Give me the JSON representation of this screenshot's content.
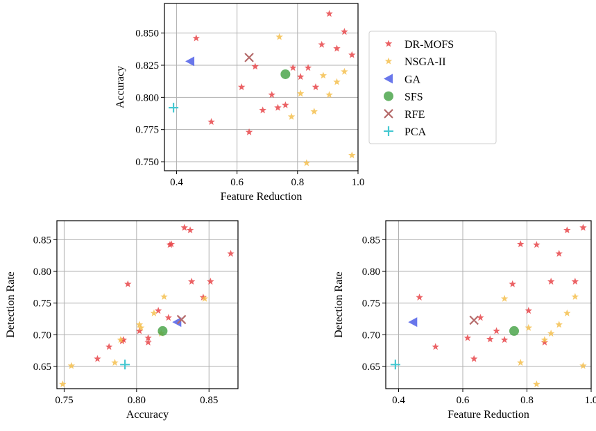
{
  "styles": {
    "DR-MOFS": {
      "marker": "star",
      "color": "#e8474a"
    },
    "NSGA-II": {
      "marker": "star",
      "color": "#f5bf4f"
    },
    "GA": {
      "marker": "triangle-left",
      "color": "#4f5fe8"
    },
    "SFS": {
      "marker": "circle",
      "color": "#4ca64c"
    },
    "RFE": {
      "marker": "x",
      "color": "#b56a6a"
    },
    "PCA": {
      "marker": "plus",
      "color": "#45c8d1"
    }
  },
  "legend": {
    "entries": [
      "DR-MOFS",
      "NSGA-II",
      "GA",
      "SFS",
      "RFE",
      "PCA"
    ]
  },
  "chart_data": [
    {
      "type": "scatter",
      "xlabel": "Feature Reduction",
      "ylabel": "Accuracy",
      "xlim": [
        0.36,
        1.0
      ],
      "ylim": [
        0.743,
        0.873
      ],
      "xticks": [
        "0.4",
        "0.6",
        "0.8",
        "1.0"
      ],
      "xtick_values": [
        0.4,
        0.6,
        0.8,
        1.0
      ],
      "yticks": [
        "0.750",
        "0.775",
        "0.800",
        "0.825",
        "0.850"
      ],
      "ytick_values": [
        0.75,
        0.775,
        0.8,
        0.825,
        0.85
      ],
      "grid": true,
      "legend_position": "right",
      "series": [
        {
          "name": "DR-MOFS",
          "x": [
            0.905,
            0.955,
            0.465,
            0.88,
            0.93,
            0.98,
            0.66,
            0.785,
            0.835,
            0.81,
            0.615,
            0.86,
            0.715,
            0.685,
            0.76,
            0.735,
            0.515,
            0.64
          ],
          "y": [
            0.865,
            0.851,
            0.846,
            0.841,
            0.838,
            0.833,
            0.824,
            0.823,
            0.823,
            0.816,
            0.808,
            0.808,
            0.802,
            0.79,
            0.794,
            0.792,
            0.781,
            0.773
          ]
        },
        {
          "name": "NSGA-II",
          "x": [
            0.74,
            0.955,
            0.885,
            0.93,
            0.81,
            0.905,
            0.855,
            0.78,
            0.98,
            0.83
          ],
          "y": [
            0.847,
            0.82,
            0.817,
            0.812,
            0.803,
            0.802,
            0.789,
            0.785,
            0.755,
            0.749
          ]
        },
        {
          "name": "GA",
          "x": [
            0.445
          ],
          "y": [
            0.828
          ]
        },
        {
          "name": "SFS",
          "x": [
            0.76
          ],
          "y": [
            0.818
          ]
        },
        {
          "name": "RFE",
          "x": [
            0.64
          ],
          "y": [
            0.831
          ]
        },
        {
          "name": "PCA",
          "x": [
            0.39
          ],
          "y": [
            0.792
          ]
        }
      ]
    },
    {
      "type": "scatter",
      "xlabel": "Accuracy",
      "ylabel": "Detection Rate",
      "xlim": [
        0.745,
        0.87
      ],
      "ylim": [
        0.615,
        0.88
      ],
      "xticks": [
        "0.75",
        "0.80",
        "0.85"
      ],
      "xtick_values": [
        0.75,
        0.8,
        0.85
      ],
      "yticks": [
        "0.65",
        "0.70",
        "0.75",
        "0.80",
        "0.85"
      ],
      "ytick_values": [
        0.65,
        0.7,
        0.75,
        0.8,
        0.85
      ],
      "grid": true,
      "series": [
        {
          "name": "DR-MOFS",
          "x": [
            0.833,
            0.837,
            0.823,
            0.824,
            0.865,
            0.794,
            0.838,
            0.851,
            0.846,
            0.822,
            0.815,
            0.802,
            0.79,
            0.791,
            0.808,
            0.808,
            0.781,
            0.773
          ],
          "y": [
            0.869,
            0.865,
            0.842,
            0.843,
            0.828,
            0.78,
            0.784,
            0.784,
            0.759,
            0.727,
            0.738,
            0.706,
            0.69,
            0.692,
            0.695,
            0.688,
            0.681,
            0.662
          ]
        },
        {
          "name": "NSGA-II",
          "x": [
            0.819,
            0.847,
            0.812,
            0.802,
            0.803,
            0.817,
            0.789,
            0.785,
            0.755,
            0.749
          ],
          "y": [
            0.76,
            0.757,
            0.734,
            0.716,
            0.711,
            0.702,
            0.692,
            0.656,
            0.651,
            0.622
          ]
        },
        {
          "name": "GA",
          "x": [
            0.828
          ],
          "y": [
            0.72
          ]
        },
        {
          "name": "SFS",
          "x": [
            0.818
          ],
          "y": [
            0.706
          ]
        },
        {
          "name": "RFE",
          "x": [
            0.831
          ],
          "y": [
            0.724
          ]
        },
        {
          "name": "PCA",
          "x": [
            0.792
          ],
          "y": [
            0.653
          ]
        }
      ]
    },
    {
      "type": "scatter",
      "xlabel": "Feature Reduction",
      "ylabel": "Detection Rate",
      "xlim": [
        0.36,
        1.0
      ],
      "ylim": [
        0.615,
        0.88
      ],
      "xticks": [
        "0.4",
        "0.6",
        "0.8",
        "1.0"
      ],
      "xtick_values": [
        0.4,
        0.6,
        0.8,
        1.0
      ],
      "yticks": [
        "0.65",
        "0.70",
        "0.75",
        "0.80",
        "0.85"
      ],
      "ytick_values": [
        0.65,
        0.7,
        0.75,
        0.8,
        0.85
      ],
      "grid": true,
      "series": [
        {
          "name": "DR-MOFS",
          "x": [
            0.975,
            0.925,
            0.78,
            0.83,
            0.9,
            0.755,
            0.875,
            0.95,
            0.465,
            0.805,
            0.655,
            0.615,
            0.705,
            0.73,
            0.685,
            0.855,
            0.515,
            0.635
          ],
          "y": [
            0.869,
            0.865,
            0.843,
            0.842,
            0.828,
            0.78,
            0.784,
            0.784,
            0.759,
            0.738,
            0.727,
            0.695,
            0.706,
            0.692,
            0.693,
            0.688,
            0.681,
            0.662
          ]
        },
        {
          "name": "NSGA-II",
          "x": [
            0.95,
            0.73,
            0.925,
            0.9,
            0.805,
            0.875,
            0.855,
            0.78,
            0.975,
            0.83
          ],
          "y": [
            0.76,
            0.757,
            0.734,
            0.716,
            0.711,
            0.702,
            0.692,
            0.656,
            0.651,
            0.622
          ]
        },
        {
          "name": "GA",
          "x": [
            0.445
          ],
          "y": [
            0.72
          ]
        },
        {
          "name": "SFS",
          "x": [
            0.76
          ],
          "y": [
            0.706
          ]
        },
        {
          "name": "RFE",
          "x": [
            0.635
          ],
          "y": [
            0.723
          ]
        },
        {
          "name": "PCA",
          "x": [
            0.39
          ],
          "y": [
            0.653
          ]
        }
      ]
    }
  ]
}
